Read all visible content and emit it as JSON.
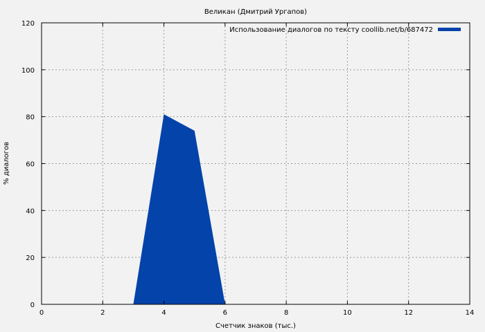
{
  "chart_data": {
    "type": "area",
    "title": "Великан (Дмитрий Ургапов)",
    "xlabel": "Счетчик знаков (тыс.)",
    "ylabel": "% диалогов",
    "xlim": [
      0,
      14
    ],
    "ylim": [
      0,
      120
    ],
    "xticks": [
      0,
      2,
      4,
      6,
      8,
      10,
      12,
      14
    ],
    "yticks": [
      0,
      20,
      40,
      60,
      80,
      100,
      120
    ],
    "grid": true,
    "legend_position": "top-right",
    "series": [
      {
        "name": "Использование диалогов по тексту coollib.net/b/687472",
        "color": "#0443aa",
        "x": [
          3,
          4,
          5,
          6
        ],
        "y": [
          0,
          81,
          74,
          0
        ]
      }
    ]
  }
}
